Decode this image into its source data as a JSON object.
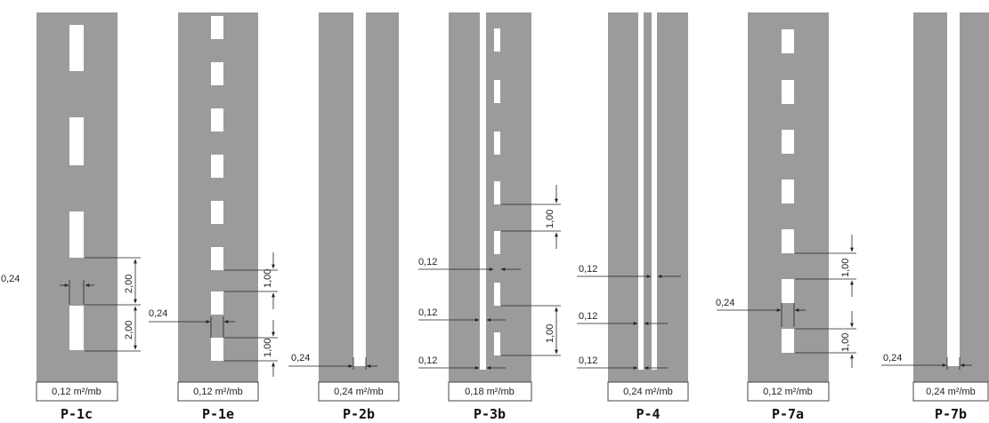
{
  "colors": {
    "road": "#9b9b9b",
    "marking": "#ffffff",
    "line": "#222222"
  },
  "panels": [
    {
      "id": "P-1c",
      "title": "P-1c",
      "area_label": "0,12 m²/mb",
      "dimensions": [
        "0,24",
        "2,00",
        "2,00"
      ]
    },
    {
      "id": "P-1e",
      "title": "P-1e",
      "area_label": "0,12 m²/mb",
      "dimensions": [
        "0,24",
        "1,00",
        "1,00"
      ]
    },
    {
      "id": "P-2b",
      "title": "P-2b",
      "area_label": "0,24 m²/mb",
      "dimensions": [
        "0,24"
      ]
    },
    {
      "id": "P-3b",
      "title": "P-3b",
      "area_label": "0,18 m²/mb",
      "dimensions": [
        "0,12",
        "0,12",
        "0,12",
        "1,00",
        "1,00"
      ]
    },
    {
      "id": "P-4",
      "title": "P-4",
      "area_label": "0,24 m²/mb",
      "dimensions": [
        "0,12",
        "0,12",
        "0,12"
      ]
    },
    {
      "id": "P-7a",
      "title": "P-7a",
      "area_label": "0,12 m²/mb",
      "dimensions": [
        "0,24",
        "1,00",
        "1,00"
      ]
    },
    {
      "id": "P-7b",
      "title": "P-7b",
      "area_label": "0,24 m²/mb",
      "dimensions": [
        "0,24"
      ]
    }
  ]
}
